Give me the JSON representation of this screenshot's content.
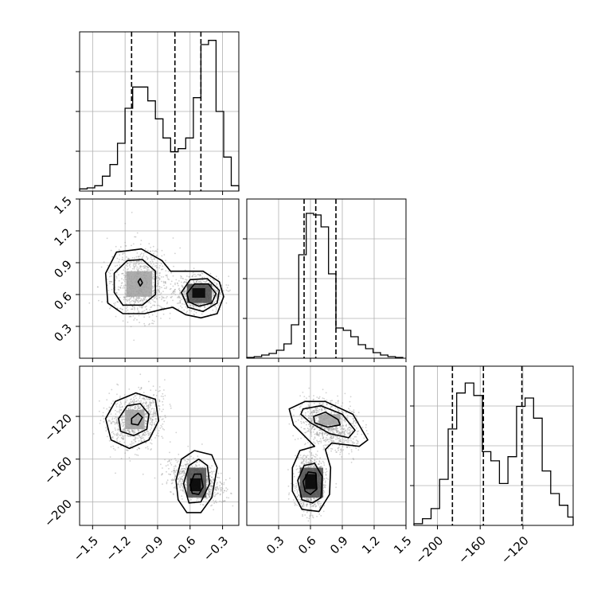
{
  "chart_data": {
    "type": "corner",
    "parameters": [
      "",
      "",
      ""
    ],
    "grid": true,
    "quantile_lines": "dashed",
    "colors": {
      "line": "#000000",
      "grid": "#b0b0b0",
      "points": "#9a9a9a",
      "density_light": "#d6d6d6",
      "density_mid": "#a0a0a0",
      "density_dark": "#4a4a4a",
      "density_max": "#000000"
    },
    "ranges": [
      [
        -1.62,
        -0.15
      ],
      [
        0.0,
        1.5
      ],
      [
        -222,
        -73
      ]
    ],
    "ticks": [
      {
        "values": [
          -1.5,
          -1.2,
          -0.9,
          -0.6,
          -0.3
        ],
        "labels": [
          "−1.5",
          "−1.2",
          "−0.9",
          "−0.6",
          "−0.3"
        ]
      },
      {
        "values": [
          0.3,
          0.6,
          0.9,
          1.2,
          1.5
        ],
        "labels": [
          "0.3",
          "0.6",
          "0.9",
          "1.2",
          "1.5"
        ]
      },
      {
        "values": [
          -200,
          -160,
          -120
        ],
        "labels": [
          "−200",
          "−160",
          "−120"
        ]
      }
    ],
    "histograms": [
      {
        "param": 0,
        "bin_edges": [
          -1.62,
          -1.55,
          -1.48,
          -1.41,
          -1.34,
          -1.27,
          -1.2,
          -1.13,
          -1.06,
          -0.99,
          -0.92,
          -0.85,
          -0.78,
          -0.71,
          -0.64,
          -0.57,
          -0.5,
          -0.43,
          -0.36,
          -0.29,
          -0.22,
          -0.15
        ],
        "counts": [
          2,
          3,
          5,
          14,
          25,
          45,
          78,
          98,
          98,
          85,
          68,
          50,
          37,
          40,
          50,
          88,
          138,
          142,
          75,
          32,
          5
        ],
        "ymax": 150,
        "quantiles": [
          -1.14,
          -0.74,
          -0.5
        ]
      },
      {
        "param": 1,
        "bin_edges": [
          0.0,
          0.07,
          0.14,
          0.21,
          0.28,
          0.35,
          0.42,
          0.49,
          0.56,
          0.63,
          0.7,
          0.77,
          0.84,
          0.91,
          0.98,
          1.05,
          1.12,
          1.19,
          1.26,
          1.33,
          1.4,
          1.47
        ],
        "counts": [
          1,
          2,
          4,
          6,
          10,
          18,
          42,
          130,
          182,
          180,
          165,
          106,
          38,
          35,
          27,
          17,
          12,
          7,
          4,
          2,
          1
        ],
        "ymax": 200,
        "quantiles": [
          0.54,
          0.65,
          0.84
        ]
      },
      {
        "param": 2,
        "bin_edges": [
          -222,
          -214,
          -206,
          -198,
          -190,
          -182,
          -174,
          -166,
          -158,
          -150,
          -142,
          -134,
          -126,
          -118,
          -110,
          -102,
          -94,
          -86,
          -78,
          -73
        ],
        "counts": [
          2,
          8,
          20,
          55,
          115,
          158,
          170,
          155,
          88,
          77,
          50,
          82,
          142,
          152,
          128,
          65,
          38,
          24,
          10
        ],
        "ymax": 190,
        "quantiles": [
          -186,
          -157,
          -121
        ]
      }
    ],
    "pairs": [
      {
        "x_param": 0,
        "y_param": 1,
        "clusters": [
          {
            "center": [
              -1.06,
              0.71
            ],
            "spread": [
              0.18,
              0.22
            ],
            "rotation_deg": 0
          },
          {
            "center": [
              -0.52,
              0.61
            ],
            "spread": [
              0.13,
              0.1
            ],
            "rotation_deg": 0
          }
        ],
        "contours": [
          {
            "points": [
              [
                -1.38,
                0.8
              ],
              [
                -1.28,
                1.0
              ],
              [
                -1.05,
                1.03
              ],
              [
                -0.86,
                0.92
              ],
              [
                -0.78,
                0.82
              ],
              [
                -0.66,
                0.82
              ],
              [
                -0.48,
                0.82
              ],
              [
                -0.33,
                0.72
              ],
              [
                -0.29,
                0.58
              ],
              [
                -0.35,
                0.42
              ],
              [
                -0.5,
                0.38
              ],
              [
                -0.64,
                0.41
              ],
              [
                -0.76,
                0.48
              ],
              [
                -0.86,
                0.46
              ],
              [
                -1.02,
                0.42
              ],
              [
                -1.22,
                0.42
              ],
              [
                -1.36,
                0.52
              ]
            ]
          },
          {
            "points": [
              [
                -1.3,
                0.8
              ],
              [
                -1.18,
                0.92
              ],
              [
                -1.04,
                0.93
              ],
              [
                -0.92,
                0.82
              ],
              [
                -0.92,
                0.6
              ],
              [
                -1.04,
                0.5
              ],
              [
                -1.22,
                0.5
              ],
              [
                -1.3,
                0.62
              ]
            ]
          },
          {
            "points": [
              [
                -0.68,
                0.62
              ],
              [
                -0.6,
                0.74
              ],
              [
                -0.44,
                0.75
              ],
              [
                -0.33,
                0.64
              ],
              [
                -0.35,
                0.52
              ],
              [
                -0.48,
                0.44
              ],
              [
                -0.62,
                0.48
              ]
            ]
          },
          {
            "points": [
              [
                -0.63,
                0.61
              ],
              [
                -0.56,
                0.7
              ],
              [
                -0.43,
                0.7
              ],
              [
                -0.36,
                0.61
              ],
              [
                -0.4,
                0.52
              ],
              [
                -0.52,
                0.49
              ],
              [
                -0.61,
                0.53
              ]
            ]
          },
          {
            "points": [
              [
                -1.08,
                0.72
              ],
              [
                -1.06,
                0.75
              ],
              [
                -1.04,
                0.71
              ],
              [
                -1.06,
                0.68
              ]
            ]
          }
        ],
        "peak_cells": [
          {
            "x": [
              -0.58,
              -0.46
            ],
            "y": [
              0.57,
              0.66
            ],
            "level": "max"
          },
          {
            "x": [
              -0.63,
              -0.4
            ],
            "y": [
              0.52,
              0.7
            ],
            "level": "dark"
          },
          {
            "x": [
              -1.19,
              -0.95
            ],
            "y": [
              0.58,
              0.82
            ],
            "level": "mid"
          }
        ]
      },
      {
        "x_param": 0,
        "y_param": 2,
        "clusters": [
          {
            "center": [
              -1.1,
              -124
            ],
            "spread": [
              0.18,
              16
            ],
            "rotation_deg": -40
          },
          {
            "center": [
              -0.55,
              -180
            ],
            "spread": [
              0.1,
              17
            ],
            "rotation_deg": -60
          }
        ],
        "contours": [
          {
            "points": [
              [
                -1.38,
                -122
              ],
              [
                -1.29,
                -106
              ],
              [
                -1.1,
                -98
              ],
              [
                -0.92,
                -104
              ],
              [
                -0.89,
                -124
              ],
              [
                -0.98,
                -142
              ],
              [
                -1.16,
                -150
              ],
              [
                -1.33,
                -142
              ]
            ]
          },
          {
            "points": [
              [
                -1.26,
                -122
              ],
              [
                -1.18,
                -110
              ],
              [
                -1.06,
                -108
              ],
              [
                -0.98,
                -118
              ],
              [
                -1.0,
                -132
              ],
              [
                -1.12,
                -138
              ],
              [
                -1.24,
                -134
              ]
            ]
          },
          {
            "points": [
              [
                -1.14,
                -122
              ],
              [
                -1.08,
                -117
              ],
              [
                -1.04,
                -121
              ],
              [
                -1.08,
                -128
              ],
              [
                -1.14,
                -127
              ]
            ]
          },
          {
            "points": [
              [
                -0.73,
                -180
              ],
              [
                -0.68,
                -160
              ],
              [
                -0.56,
                -152
              ],
              [
                -0.4,
                -156
              ],
              [
                -0.35,
                -168
              ],
              [
                -0.4,
                -196
              ],
              [
                -0.5,
                -210
              ],
              [
                -0.63,
                -210
              ],
              [
                -0.71,
                -198
              ]
            ]
          },
          {
            "points": [
              [
                -0.66,
                -183
              ],
              [
                -0.61,
                -166
              ],
              [
                -0.52,
                -160
              ],
              [
                -0.44,
                -166
              ],
              [
                -0.42,
                -183
              ],
              [
                -0.5,
                -200
              ],
              [
                -0.61,
                -201
              ]
            ]
          },
          {
            "points": [
              [
                -0.6,
                -184
              ],
              [
                -0.56,
                -174
              ],
              [
                -0.5,
                -174
              ],
              [
                -0.48,
                -186
              ],
              [
                -0.52,
                -193
              ],
              [
                -0.58,
                -192
              ]
            ]
          }
        ],
        "peak_cells": [
          {
            "x": [
              -0.6,
              -0.5
            ],
            "y": [
              -190,
              -178
            ],
            "level": "max"
          },
          {
            "x": [
              -0.63,
              -0.45
            ],
            "y": [
              -196,
              -168
            ],
            "level": "dark"
          },
          {
            "x": [
              -1.2,
              -1.02
            ],
            "y": [
              -132,
              -114
            ],
            "level": "mid"
          }
        ]
      },
      {
        "x_param": 1,
        "y_param": 2,
        "clusters": [
          {
            "center": [
              0.78,
              -128
            ],
            "spread": [
              0.2,
              13
            ],
            "rotation_deg": 35
          },
          {
            "center": [
              0.6,
              -182
            ],
            "spread": [
              0.09,
              17
            ],
            "rotation_deg": 0
          }
        ],
        "contours": [
          {
            "points": [
              [
                0.4,
                -113
              ],
              [
                0.55,
                -106
              ],
              [
                0.74,
                -106
              ],
              [
                1.0,
                -118
              ],
              [
                1.14,
                -142
              ],
              [
                1.06,
                -148
              ],
              [
                0.8,
                -145
              ],
              [
                0.74,
                -151
              ],
              [
                0.79,
                -168
              ],
              [
                0.78,
                -193
              ],
              [
                0.68,
                -209
              ],
              [
                0.52,
                -207
              ],
              [
                0.43,
                -190
              ],
              [
                0.43,
                -168
              ],
              [
                0.5,
                -152
              ],
              [
                0.64,
                -148
              ],
              [
                0.56,
                -140
              ],
              [
                0.44,
                -128
              ]
            ]
          },
          {
            "points": [
              [
                0.53,
                -113
              ],
              [
                0.7,
                -110
              ],
              [
                0.9,
                -118
              ],
              [
                1.02,
                -133
              ],
              [
                0.96,
                -140
              ],
              [
                0.78,
                -136
              ],
              [
                0.6,
                -126
              ],
              [
                0.51,
                -118
              ]
            ]
          },
          {
            "points": [
              [
                0.63,
                -120
              ],
              [
                0.74,
                -116
              ],
              [
                0.86,
                -123
              ],
              [
                0.88,
                -128
              ],
              [
                0.76,
                -130
              ],
              [
                0.64,
                -126
              ]
            ]
          },
          {
            "points": [
              [
                0.48,
                -180
              ],
              [
                0.54,
                -166
              ],
              [
                0.64,
                -164
              ],
              [
                0.71,
                -176
              ],
              [
                0.7,
                -196
              ],
              [
                0.62,
                -201
              ],
              [
                0.52,
                -198
              ]
            ]
          },
          {
            "points": [
              [
                0.53,
                -181
              ],
              [
                0.58,
                -172
              ],
              [
                0.65,
                -173
              ],
              [
                0.66,
                -188
              ],
              [
                0.6,
                -193
              ],
              [
                0.55,
                -190
              ]
            ]
          }
        ],
        "peak_cells": [
          {
            "x": [
              0.55,
              0.66
            ],
            "y": [
              -188,
              -174
            ],
            "level": "max"
          },
          {
            "x": [
              0.5,
              0.72
            ],
            "y": [
              -196,
              -168
            ],
            "level": "dark"
          },
          {
            "x": [
              0.68,
              0.88
            ],
            "y": [
              -128,
              -118
            ],
            "level": "mid"
          }
        ]
      }
    ]
  }
}
